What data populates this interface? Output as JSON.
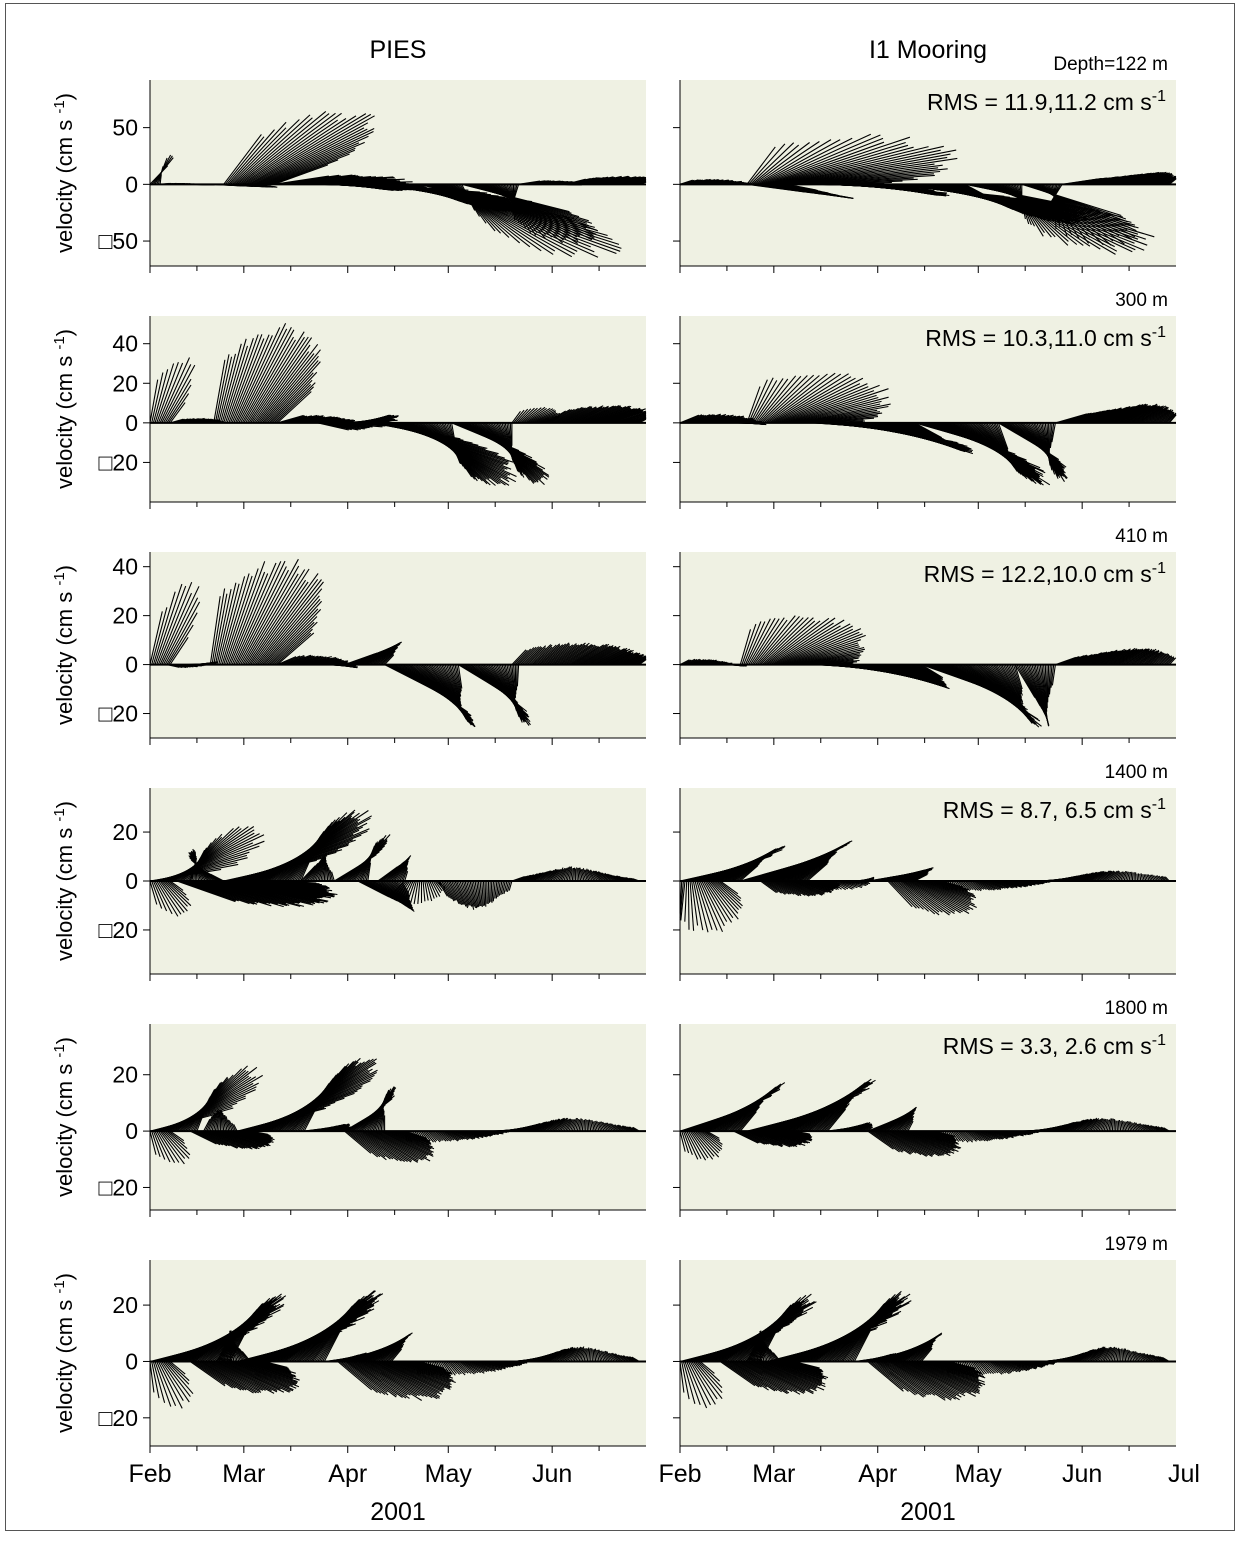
{
  "figure": {
    "columns": [
      "PIES",
      "I1 Mooring"
    ],
    "year": "2001",
    "ylabel": "velocity",
    "ylabel_units": "(cm s",
    "ylabel_exp": "-1",
    "ylabel_close": ")",
    "rms_prefix": "RMS = ",
    "rms_units": "cm s",
    "rms_exp": "-1",
    "minus_glyph": "□",
    "background_color": "#eff1e3",
    "stick_color": "#000000"
  },
  "chart_data": {
    "type": "stick_plot",
    "x_axis": {
      "months": [
        "Feb",
        "Mar",
        "Apr",
        "May",
        "Jun",
        "Jul"
      ],
      "range": [
        "2001-02-01",
        "2001-06-29"
      ],
      "label": "2001"
    },
    "panels": [
      {
        "depth": "Depth=122 m",
        "rms": "11.9,11.2",
        "yticks": [
          -50,
          0,
          50
        ],
        "ylim": [
          -72,
          92
        ],
        "pies": [
          {
            "start": 0,
            "end": 3,
            "mag": 28,
            "a0": 75,
            "a1": 88
          },
          {
            "start": 3,
            "end": 18,
            "mag": 4,
            "a0": 20,
            "a1": -20
          },
          {
            "start": 18,
            "end": 30,
            "mag": 12,
            "a0": -10,
            "a1": -15
          },
          {
            "start": 22,
            "end": 37,
            "mag": 72,
            "a0": 78,
            "a1": 52
          },
          {
            "start": 37,
            "end": 60,
            "mag": 28,
            "a0": 28,
            "a1": -28
          },
          {
            "start": 60,
            "end": 80,
            "mag": 48,
            "a0": -10,
            "a1": -55
          },
          {
            "start": 80,
            "end": 93,
            "mag": 78,
            "a0": -38,
            "a1": -82
          },
          {
            "start": 93,
            "end": 110,
            "mag": 58,
            "a0": -42,
            "a1": -95
          },
          {
            "start": 110,
            "end": 124,
            "mag": 10,
            "a0": 28,
            "a1": -10
          },
          {
            "start": 124,
            "end": 146,
            "mag": 12,
            "a0": 42,
            "a1": 28
          }
        ],
        "mooring": [
          {
            "start": 0,
            "end": 20,
            "mag": 8,
            "a0": 50,
            "a1": -15
          },
          {
            "start": 20,
            "end": 38,
            "mag": 56,
            "a0": 78,
            "a1": 0
          },
          {
            "start": 20,
            "end": 32,
            "mag": 26,
            "a0": -25,
            "a1": -35
          },
          {
            "start": 38,
            "end": 62,
            "mag": 28,
            "a0": 0,
            "a1": -38
          },
          {
            "start": 62,
            "end": 85,
            "mag": 55,
            "a0": -20,
            "a1": -62
          },
          {
            "start": 85,
            "end": 102,
            "mag": 72,
            "a0": -35,
            "a1": -90
          },
          {
            "start": 102,
            "end": 114,
            "mag": 58,
            "a0": -48,
            "a1": -100
          },
          {
            "start": 114,
            "end": 146,
            "mag": 16,
            "a0": 28,
            "a1": 58
          }
        ]
      },
      {
        "depth": "300 m",
        "rms": "10.3,11.0",
        "yticks": [
          -20,
          0,
          20,
          40
        ],
        "ylim": [
          -40,
          54
        ],
        "pies": [
          {
            "start": 0,
            "end": 6,
            "mag": 36,
            "a0": 85,
            "a1": 70
          },
          {
            "start": 6,
            "end": 20,
            "mag": 6,
            "a0": 30,
            "a1": 5
          },
          {
            "start": 19,
            "end": 38,
            "mag": 52,
            "a0": 85,
            "a1": 62
          },
          {
            "start": 38,
            "end": 60,
            "mag": 12,
            "a0": 30,
            "a1": -30
          },
          {
            "start": 50,
            "end": 66,
            "mag": 14,
            "a0": -25,
            "a1": 40
          },
          {
            "start": 66,
            "end": 90,
            "mag": 42,
            "a0": -20,
            "a1": -85
          },
          {
            "start": 90,
            "end": 108,
            "mag": 36,
            "a0": -40,
            "a1": -90
          },
          {
            "start": 108,
            "end": 118,
            "mag": 10,
            "a0": 70,
            "a1": 30
          },
          {
            "start": 118,
            "end": 146,
            "mag": 14,
            "a0": 50,
            "a1": 25
          }
        ],
        "mooring": [
          {
            "start": 0,
            "end": 22,
            "mag": 10,
            "a0": 40,
            "a1": -15
          },
          {
            "start": 20,
            "end": 40,
            "mag": 33,
            "a0": 80,
            "a1": 0
          },
          {
            "start": 40,
            "end": 70,
            "mag": 32,
            "a0": -8,
            "a1": -48
          },
          {
            "start": 70,
            "end": 95,
            "mag": 40,
            "a0": -30,
            "a1": -80
          },
          {
            "start": 95,
            "end": 112,
            "mag": 32,
            "a0": -50,
            "a1": -95
          },
          {
            "start": 112,
            "end": 146,
            "mag": 14,
            "a0": 30,
            "a1": 60
          }
        ]
      },
      {
        "depth": "410 m",
        "rms": "12.2,10.0",
        "yticks": [
          -20,
          0,
          20,
          40
        ],
        "ylim": [
          -30,
          46
        ],
        "pies": [
          {
            "start": 0,
            "end": 6,
            "mag": 36,
            "a0": 82,
            "a1": 68
          },
          {
            "start": 5,
            "end": 18,
            "mag": 6,
            "a0": -20,
            "a1": 25
          },
          {
            "start": 18,
            "end": 38,
            "mag": 46,
            "a0": 85,
            "a1": 55
          },
          {
            "start": 38,
            "end": 58,
            "mag": 10,
            "a0": 35,
            "a1": -20
          },
          {
            "start": 58,
            "end": 70,
            "mag": 14,
            "a0": 30,
            "a1": 60
          },
          {
            "start": 70,
            "end": 92,
            "mag": 30,
            "a0": -40,
            "a1": -85
          },
          {
            "start": 92,
            "end": 110,
            "mag": 28,
            "a0": -45,
            "a1": -92
          },
          {
            "start": 108,
            "end": 146,
            "mag": 12,
            "a0": 60,
            "a1": 30
          }
        ],
        "mooring": [
          {
            "start": 0,
            "end": 18,
            "mag": 5,
            "a0": 40,
            "a1": -20
          },
          {
            "start": 18,
            "end": 40,
            "mag": 26,
            "a0": 80,
            "a1": 0
          },
          {
            "start": 40,
            "end": 72,
            "mag": 22,
            "a0": -5,
            "a1": -45
          },
          {
            "start": 72,
            "end": 100,
            "mag": 32,
            "a0": -30,
            "a1": -80
          },
          {
            "start": 100,
            "end": 112,
            "mag": 26,
            "a0": -70,
            "a1": -95
          },
          {
            "start": 112,
            "end": 146,
            "mag": 10,
            "a0": 30,
            "a1": 60
          }
        ]
      },
      {
        "depth": "1400 m",
        "rms": " 8.7, 6.5",
        "yticks": [
          -20,
          0,
          20
        ],
        "ylim": [
          -38,
          38
        ],
        "pies": [
          {
            "start": 0,
            "end": 6,
            "mag": 16,
            "a0": -80,
            "a1": -50
          },
          {
            "start": 0,
            "end": 12,
            "mag": 32,
            "a0": 15,
            "a1": 75
          },
          {
            "start": 12,
            "end": 22,
            "mag": 14,
            "a0": 80,
            "a1": 140
          },
          {
            "start": 8,
            "end": 38,
            "mag": 28,
            "a0": -30,
            "a1": -5
          },
          {
            "start": 22,
            "end": 45,
            "mag": 40,
            "a0": 20,
            "a1": 75
          },
          {
            "start": 45,
            "end": 55,
            "mag": 12,
            "a0": 60,
            "a1": 100
          },
          {
            "start": 55,
            "end": 65,
            "mag": 22,
            "a0": 45,
            "a1": 85
          },
          {
            "start": 62,
            "end": 75,
            "mag": 16,
            "a0": -40,
            "a1": -70
          },
          {
            "start": 68,
            "end": 76,
            "mag": 12,
            "a0": 50,
            "a1": 80
          },
          {
            "start": 76,
            "end": 86,
            "mag": 10,
            "a0": -120,
            "a1": -60
          },
          {
            "start": 86,
            "end": 108,
            "mag": 12,
            "a0": -70,
            "a1": -100
          },
          {
            "start": 108,
            "end": 146,
            "mag": 6,
            "a0": 30,
            "a1": 150
          }
        ],
        "mooring": [
          {
            "start": 0,
            "end": 12,
            "mag": 22,
            "a0": -100,
            "a1": -50
          },
          {
            "start": 0,
            "end": 18,
            "mag": 24,
            "a0": 20,
            "a1": 55
          },
          {
            "start": 18,
            "end": 38,
            "mag": 26,
            "a0": 25,
            "a1": 55
          },
          {
            "start": 24,
            "end": 44,
            "mag": 10,
            "a0": -50,
            "a1": -20
          },
          {
            "start": 44,
            "end": 56,
            "mag": 6,
            "a0": -60,
            "a1": 40
          },
          {
            "start": 56,
            "end": 70,
            "mag": 12,
            "a0": 15,
            "a1": 40
          },
          {
            "start": 62,
            "end": 78,
            "mag": 20,
            "a0": -60,
            "a1": -25
          },
          {
            "start": 78,
            "end": 146,
            "mag": 6,
            "a0": -80,
            "a1": 120
          }
        ]
      },
      {
        "depth": "1800 m",
        "rms": " 3.3, 2.6",
        "yticks": [
          -20,
          0,
          20
        ],
        "ylim": [
          -28,
          38
        ],
        "pies": [
          {
            "start": 0,
            "end": 6,
            "mag": 14,
            "a0": -80,
            "a1": -45
          },
          {
            "start": 0,
            "end": 14,
            "mag": 32,
            "a0": 20,
            "a1": 75
          },
          {
            "start": 12,
            "end": 30,
            "mag": 14,
            "a0": -35,
            "a1": -15
          },
          {
            "start": 16,
            "end": 26,
            "mag": 8,
            "a0": 70,
            "a1": 110
          },
          {
            "start": 26,
            "end": 46,
            "mag": 38,
            "a0": 20,
            "a1": 70
          },
          {
            "start": 46,
            "end": 58,
            "mag": 6,
            "a0": 10,
            "a1": 40
          },
          {
            "start": 58,
            "end": 70,
            "mag": 18,
            "a0": 40,
            "a1": 90
          },
          {
            "start": 58,
            "end": 76,
            "mag": 18,
            "a0": -50,
            "a1": -25
          },
          {
            "start": 76,
            "end": 146,
            "mag": 6,
            "a0": -80,
            "a1": 140
          }
        ],
        "mooring": [
          {
            "start": 0,
            "end": 8,
            "mag": 12,
            "a0": -80,
            "a1": -40
          },
          {
            "start": 0,
            "end": 18,
            "mag": 26,
            "a0": 25,
            "a1": 60
          },
          {
            "start": 16,
            "end": 34,
            "mag": 12,
            "a0": -35,
            "a1": -15
          },
          {
            "start": 20,
            "end": 44,
            "mag": 30,
            "a0": 20,
            "a1": 60
          },
          {
            "start": 44,
            "end": 56,
            "mag": 6,
            "a0": 10,
            "a1": 50
          },
          {
            "start": 56,
            "end": 68,
            "mag": 12,
            "a0": 30,
            "a1": 70
          },
          {
            "start": 56,
            "end": 76,
            "mag": 16,
            "a0": -45,
            "a1": -20
          },
          {
            "start": 76,
            "end": 146,
            "mag": 6,
            "a0": -80,
            "a1": 140
          }
        ]
      },
      {
        "depth": "1979 m",
        "rms": "",
        "yticks": [
          -20,
          0,
          20
        ],
        "ylim": [
          -30,
          36
        ],
        "pies": [
          {
            "start": 0,
            "end": 6,
            "mag": 18,
            "a0": -85,
            "a1": -50
          },
          {
            "start": 0,
            "end": 24,
            "mag": 34,
            "a0": 20,
            "a1": 70
          },
          {
            "start": 12,
            "end": 34,
            "mag": 20,
            "a0": -45,
            "a1": -20
          },
          {
            "start": 20,
            "end": 30,
            "mag": 12,
            "a0": 70,
            "a1": 120
          },
          {
            "start": 26,
            "end": 52,
            "mag": 36,
            "a0": 20,
            "a1": 70
          },
          {
            "start": 52,
            "end": 64,
            "mag": 6,
            "a0": 10,
            "a1": 50
          },
          {
            "start": 56,
            "end": 72,
            "mag": 16,
            "a0": 20,
            "a1": 60
          },
          {
            "start": 56,
            "end": 80,
            "mag": 22,
            "a0": -50,
            "a1": -20
          },
          {
            "start": 80,
            "end": 146,
            "mag": 7,
            "a0": -90,
            "a1": 140
          }
        ],
        "mooring": [
          {
            "start": 0,
            "end": 6,
            "mag": 18,
            "a0": -85,
            "a1": -50
          },
          {
            "start": 0,
            "end": 24,
            "mag": 34,
            "a0": 20,
            "a1": 70
          },
          {
            "start": 12,
            "end": 34,
            "mag": 20,
            "a0": -45,
            "a1": -20
          },
          {
            "start": 20,
            "end": 30,
            "mag": 12,
            "a0": 70,
            "a1": 120
          },
          {
            "start": 26,
            "end": 52,
            "mag": 36,
            "a0": 20,
            "a1": 70
          },
          {
            "start": 52,
            "end": 64,
            "mag": 6,
            "a0": 10,
            "a1": 50
          },
          {
            "start": 56,
            "end": 72,
            "mag": 16,
            "a0": 20,
            "a1": 60
          },
          {
            "start": 56,
            "end": 80,
            "mag": 22,
            "a0": -50,
            "a1": -20
          },
          {
            "start": 80,
            "end": 146,
            "mag": 7,
            "a0": -90,
            "a1": 140
          }
        ]
      }
    ]
  }
}
